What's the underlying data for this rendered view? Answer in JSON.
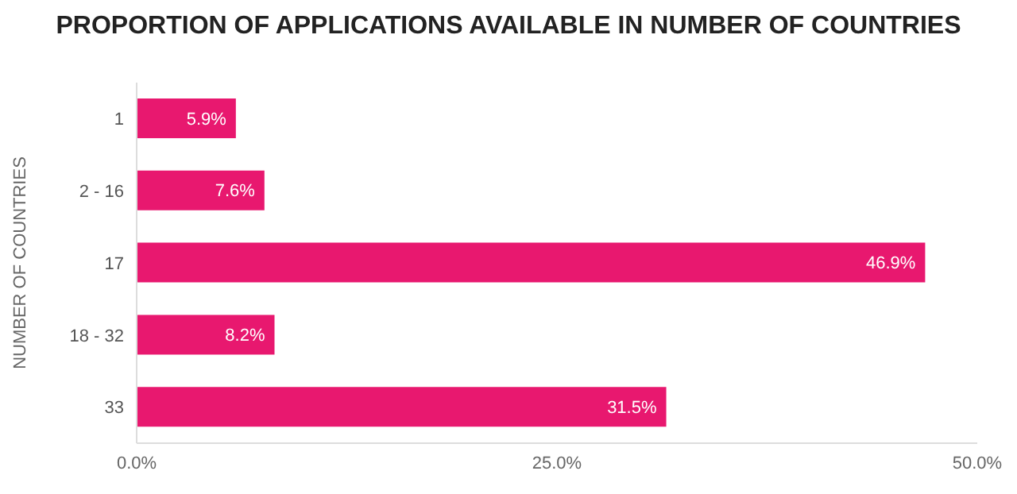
{
  "chart_data": {
    "type": "bar",
    "orientation": "horizontal",
    "title": "PROPORTION OF APPLICATIONS AVAILABLE IN NUMBER OF COUNTRIES",
    "ylabel": "NUMBER OF COUNTRIES",
    "categories": [
      "1",
      "2 - 16",
      "17",
      "18 - 32",
      "33"
    ],
    "values": [
      5.9,
      7.6,
      46.9,
      8.2,
      31.5
    ],
    "value_labels": [
      "5.9%",
      "7.6%",
      "46.9%",
      "8.2%",
      "31.5%"
    ],
    "color": "#e8186f",
    "xlim": [
      0,
      50
    ],
    "xticks": [
      {
        "value": 0,
        "label": "0.0%"
      },
      {
        "value": 25,
        "label": "25.0%"
      },
      {
        "value": 50,
        "label": "50.0%"
      }
    ]
  }
}
